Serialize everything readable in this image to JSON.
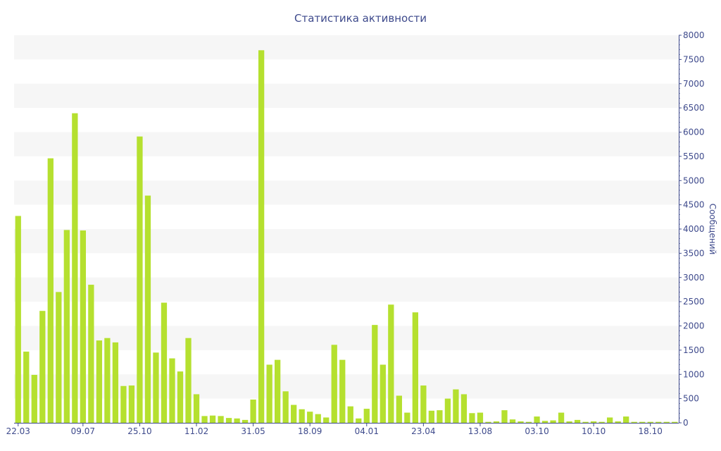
{
  "chart_data": {
    "type": "bar",
    "title": "Статистика активности",
    "xlabel": "",
    "ylabel": "Сообщений",
    "ylim": [
      0,
      8000
    ],
    "yticks": [
      0,
      500,
      1000,
      1500,
      2000,
      2500,
      3000,
      3500,
      4000,
      4500,
      5000,
      5500,
      6000,
      6500,
      7000,
      7500,
      8000
    ],
    "grid": "horizontal alternating bands",
    "y_axis_side": "right",
    "bar_color": "#b5e02f",
    "x_tick_labels": [
      {
        "label": "22.03",
        "index": 0
      },
      {
        "label": "09.07",
        "index": 8
      },
      {
        "label": "25.10",
        "index": 15
      },
      {
        "label": "11.02",
        "index": 22
      },
      {
        "label": "31.05",
        "index": 29
      },
      {
        "label": "18.09",
        "index": 36
      },
      {
        "label": "04.01",
        "index": 43
      },
      {
        "label": "23.04",
        "index": 50
      },
      {
        "label": "13.08",
        "index": 57
      },
      {
        "label": "03.10",
        "index": 64
      },
      {
        "label": "10.10",
        "index": 71
      },
      {
        "label": "18.10",
        "index": 78
      }
    ],
    "values": [
      4270,
      1470,
      990,
      2310,
      5460,
      2700,
      3980,
      6390,
      3970,
      2850,
      1700,
      1750,
      1660,
      760,
      770,
      5910,
      4690,
      1450,
      2480,
      1330,
      1060,
      1750,
      590,
      140,
      150,
      140,
      100,
      90,
      60,
      480,
      7690,
      1200,
      1300,
      650,
      370,
      280,
      230,
      180,
      110,
      1610,
      1300,
      340,
      90,
      290,
      2020,
      1200,
      2440,
      560,
      210,
      2280,
      770,
      250,
      260,
      500,
      690,
      590,
      200,
      210,
      20,
      30,
      260,
      70,
      30,
      20,
      130,
      40,
      50,
      210,
      30,
      60,
      20,
      30,
      20,
      110,
      30,
      130,
      20,
      20,
      20,
      20,
      20,
      20
    ]
  },
  "colors": {
    "text": "#3e4a8c",
    "band": "#f6f6f6",
    "bar": "#b5e02f"
  }
}
